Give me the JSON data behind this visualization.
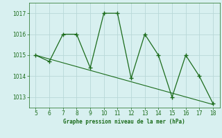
{
  "x": [
    5,
    6,
    7,
    8,
    9,
    10,
    11,
    12,
    13,
    14,
    15,
    16,
    17,
    18
  ],
  "y": [
    1015.0,
    1014.7,
    1016.0,
    1016.0,
    1014.4,
    1017.0,
    1017.0,
    1013.9,
    1016.0,
    1015.0,
    1013.0,
    1015.0,
    1014.0,
    1012.7
  ],
  "trend_x": [
    5,
    18
  ],
  "trend_y": [
    1015.0,
    1012.65
  ],
  "line_color": "#1a6b1a",
  "bg_color": "#d8f0f0",
  "grid_color": "#b8d8d8",
  "xlabel": "Graphe pression niveau de la mer (hPa)",
  "ylim": [
    1012.5,
    1017.5
  ],
  "xlim": [
    4.5,
    18.5
  ],
  "yticks": [
    1013,
    1014,
    1015,
    1016,
    1017
  ],
  "xticks": [
    5,
    6,
    7,
    8,
    9,
    10,
    11,
    12,
    13,
    14,
    15,
    16,
    17,
    18
  ]
}
